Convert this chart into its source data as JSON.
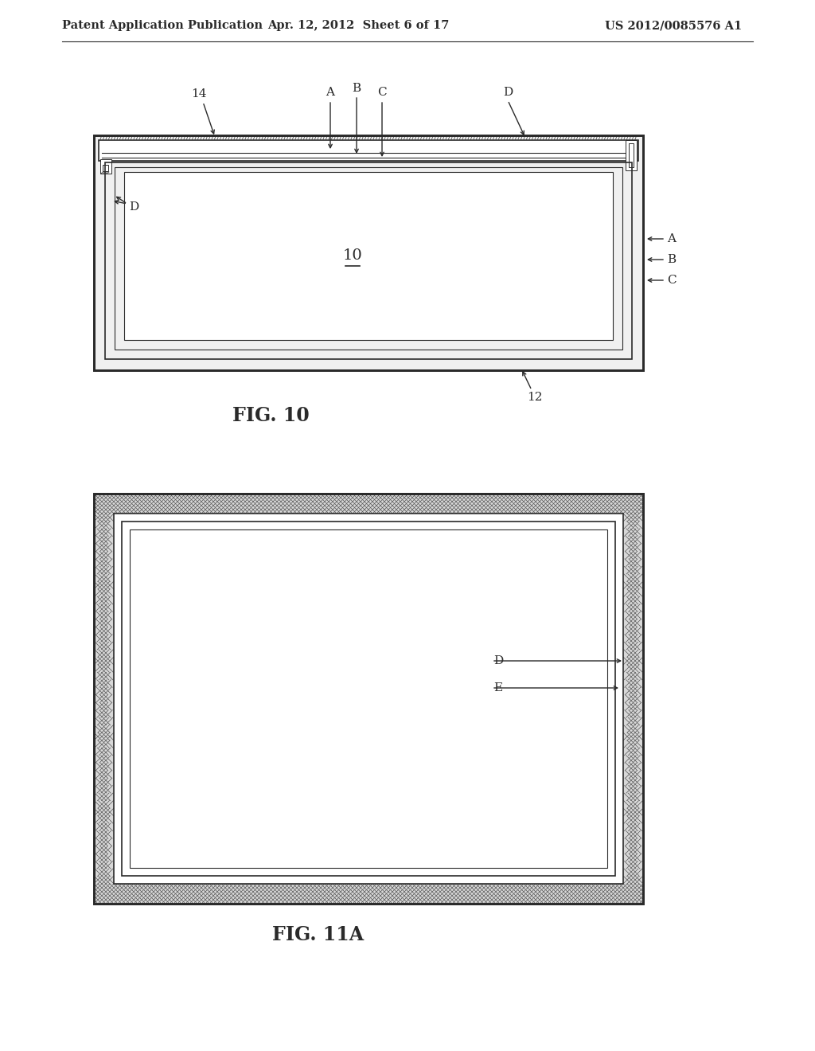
{
  "header_left": "Patent Application Publication",
  "header_mid": "Apr. 12, 2012  Sheet 6 of 17",
  "header_right": "US 2012/0085576 A1",
  "fig10_label": "FIG. 10",
  "fig11a_label": "FIG. 11A",
  "bg_color": "#ffffff",
  "line_color": "#2a2a2a"
}
